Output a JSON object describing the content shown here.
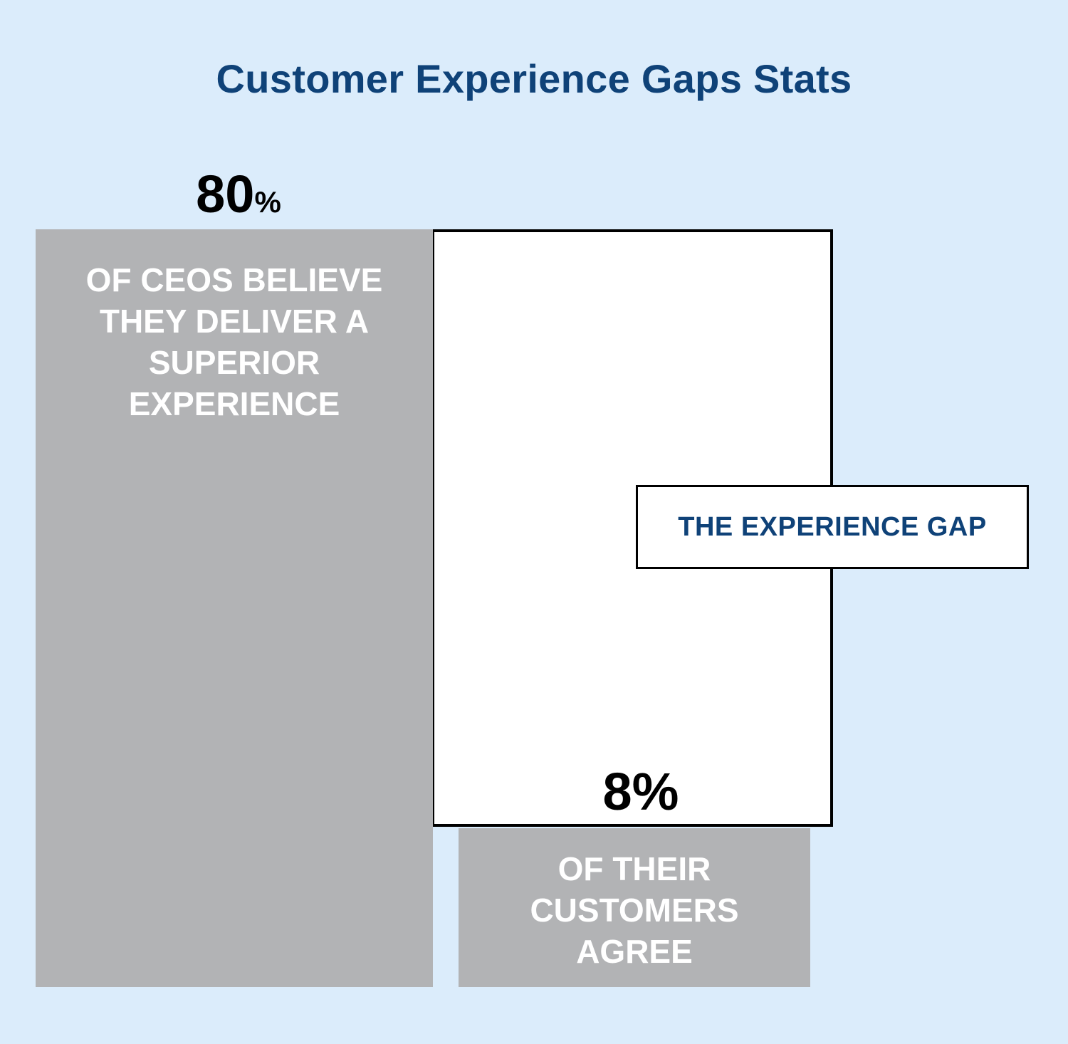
{
  "title": "Customer Experience Gaps Stats",
  "chart_data": {
    "type": "bar",
    "title": "Customer Experience Gaps Stats",
    "categories": [
      "OF CEOS BELIEVE THEY DELIVER A SUPERIOR EXPERIENCE",
      "OF THEIR CUSTOMERS AGREE"
    ],
    "values": [
      80,
      8
    ],
    "unit": "%",
    "value_labels": [
      {
        "number": "80",
        "suffix": "%"
      },
      {
        "number": "8",
        "suffix": "%"
      }
    ],
    "bar_labels": [
      [
        "OF CEOS BELIEVE",
        "THEY DELIVER A",
        "SUPERIOR",
        "EXPERIENCE"
      ],
      [
        "OF THEIR",
        "CUSTOMERS",
        "AGREE"
      ]
    ],
    "annotation": "THE EXPERIENCE GAP",
    "colors": {
      "bar": "#b2b3b5",
      "gap_fill": "#ffffff",
      "gap_stroke": "#000000",
      "background": "#dbecfb",
      "title": "#0f4278",
      "annotation_text": "#0f4278"
    },
    "grid": false,
    "legend": "none"
  }
}
